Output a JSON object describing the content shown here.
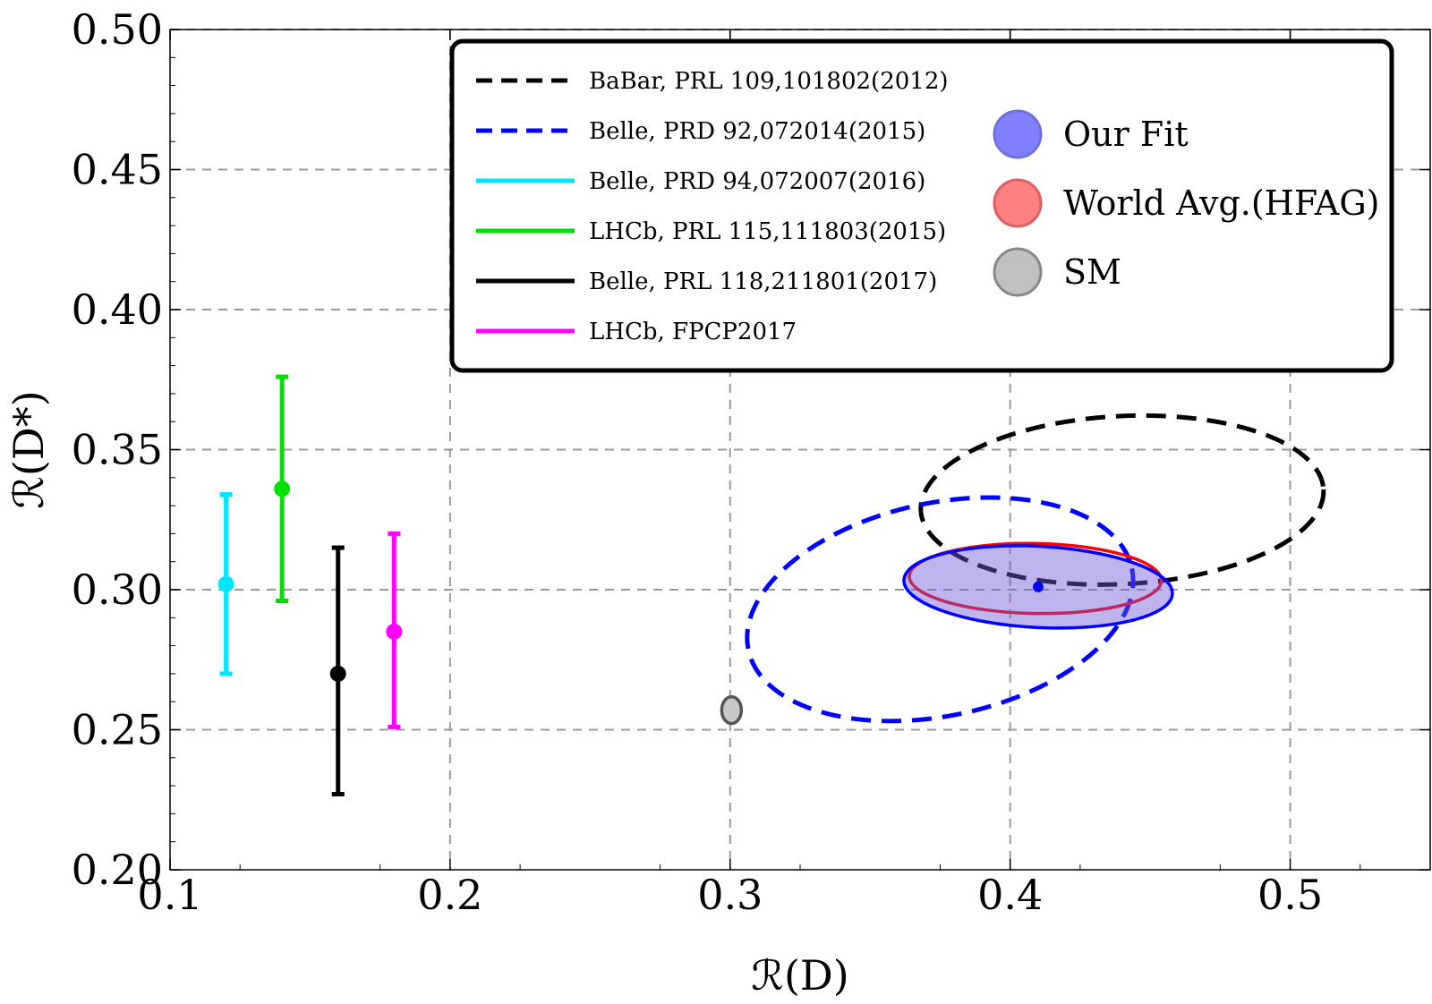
{
  "chart_data": {
    "type": "scatter",
    "xlabel": "ℛ(D)",
    "ylabel": "ℛ(D*)",
    "xlim": [
      0.1,
      0.55
    ],
    "ylim": [
      0.2,
      0.5
    ],
    "grid": true,
    "xticks": [
      0.1,
      0.2,
      0.3,
      0.4,
      0.5
    ],
    "xtick_labels": [
      "0.1",
      "0.2",
      "0.3",
      "0.4",
      "0.5"
    ],
    "yticks": [
      0.2,
      0.25,
      0.3,
      0.35,
      0.4,
      0.45,
      0.5
    ],
    "ytick_labels": [
      "0.20",
      "0.25",
      "0.30",
      "0.35",
      "0.40",
      "0.45",
      "0.50"
    ],
    "legend_position": "top-right",
    "legend_lines": [
      {
        "label": "BaBar, PRL 109,101802(2012)",
        "color": "#000000",
        "dashed": true
      },
      {
        "label": "Belle, PRD 92,072014(2015)",
        "color": "#0000ff",
        "dashed": true
      },
      {
        "label": "Belle, PRD 94,072007(2016)",
        "color": "#00e5ff",
        "dashed": false
      },
      {
        "label": "LHCb, PRL 115,111803(2015)",
        "color": "#00e000",
        "dashed": false
      },
      {
        "label": "Belle, PRL 118,211801(2017)",
        "color": "#000000",
        "dashed": false
      },
      {
        "label": "LHCb, FPCP2017",
        "color": "#ff00ff",
        "dashed": false
      }
    ],
    "legend_regions": [
      {
        "label": "Our Fit",
        "fill": "#8080ff",
        "stroke": "#7070dd"
      },
      {
        "label": "World Avg.(HFAG)",
        "fill": "#ff8080",
        "stroke": "#dd6060"
      },
      {
        "label": "SM",
        "fill": "#c0c0c0",
        "stroke": "#888888"
      }
    ],
    "error_bars": [
      {
        "name": "Belle, PRD 94,072007(2016)",
        "x": 0.12,
        "y": 0.302,
        "low": 0.27,
        "high": 0.334,
        "color": "#00e5ff"
      },
      {
        "name": "LHCb, PRL 115,111803(2015)",
        "x": 0.14,
        "y": 0.336,
        "low": 0.296,
        "high": 0.376,
        "color": "#00e000"
      },
      {
        "name": "Belle, PRL 118,211801(2017)",
        "x": 0.16,
        "y": 0.27,
        "low": 0.227,
        "high": 0.315,
        "color": "#000000"
      },
      {
        "name": "LHCb, FPCP2017",
        "x": 0.18,
        "y": 0.285,
        "low": 0.251,
        "high": 0.32,
        "color": "#ff00ff"
      }
    ],
    "ellipses": [
      {
        "name": "BaBar, PRL 109,101802(2012)",
        "cx": 0.44,
        "cy": 0.332,
        "rx": 0.072,
        "ry": 0.03,
        "angle_deg": -3,
        "stroke": "#000000",
        "fill": "none",
        "dashed": true
      },
      {
        "name": "Belle, PRD 92,072014(2015)",
        "cx": 0.375,
        "cy": 0.293,
        "rx": 0.07,
        "ry": 0.038,
        "angle_deg": -12,
        "stroke": "#0000ff",
        "fill": "none",
        "dashed": true
      },
      {
        "name": "World Avg.(HFAG)",
        "cx": 0.409,
        "cy": 0.304,
        "rx": 0.045,
        "ry": 0.0125,
        "angle_deg": 1,
        "stroke": "#ff0000",
        "fill": "none",
        "dashed": false
      },
      {
        "name": "Our Fit",
        "cx": 0.41,
        "cy": 0.301,
        "rx": 0.048,
        "ry": 0.0145,
        "angle_deg": 3,
        "stroke": "#0000ff",
        "fill": "rgba(110,90,220,0.45)",
        "dashed": false
      },
      {
        "name": "SM",
        "cx": 0.3005,
        "cy": 0.257,
        "rx": 0.0035,
        "ry": 0.0048,
        "angle_deg": 0,
        "stroke": "#555555",
        "fill": "#c8c8c8",
        "dashed": false
      }
    ],
    "points": [
      {
        "name": "Our Fit central value",
        "x": 0.41,
        "y": 0.301,
        "color": "#0000ff"
      }
    ]
  }
}
